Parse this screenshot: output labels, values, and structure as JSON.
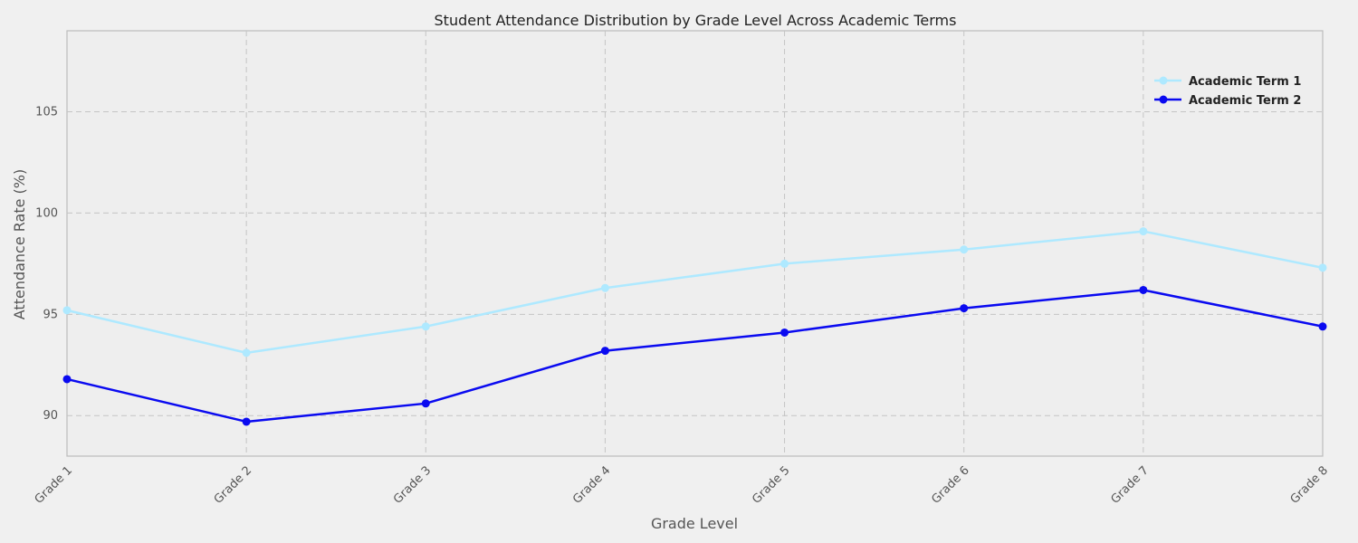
{
  "chart_data": {
    "type": "line",
    "title": "Student Attendance Distribution by Grade Level Across Academic Terms",
    "xlabel": "Grade Level",
    "ylabel": "Attendance Rate (%)",
    "categories": [
      "Grade 1",
      "Grade 2",
      "Grade 3",
      "Grade 4",
      "Grade 5",
      "Grade 6",
      "Grade 7",
      "Grade 8"
    ],
    "ylim": [
      88,
      109
    ],
    "yticks": [
      90,
      95,
      100,
      105
    ],
    "grid": true,
    "legend_position": "top-right",
    "series": [
      {
        "name": "Academic Term 1",
        "color": "#aee9ff",
        "values": [
          95.2,
          93.1,
          94.4,
          96.3,
          97.5,
          98.2,
          99.1,
          97.3
        ]
      },
      {
        "name": "Academic Term 2",
        "color": "#0a0af0",
        "values": [
          91.8,
          89.7,
          90.6,
          93.2,
          94.1,
          95.3,
          96.2,
          94.4
        ]
      }
    ]
  }
}
